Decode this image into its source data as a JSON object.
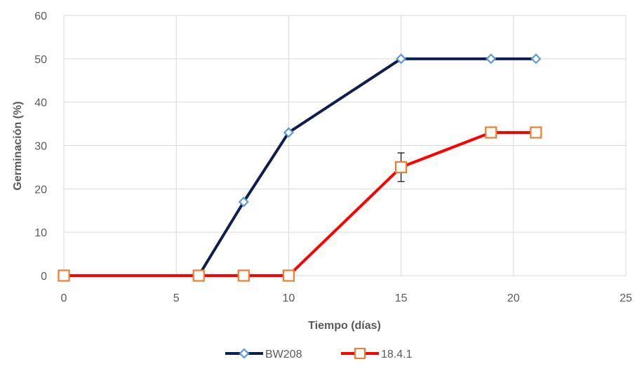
{
  "chart_data": {
    "type": "line",
    "title": "",
    "xlabel": "Tiempo (días)",
    "ylabel": "Germinación (%)",
    "xlim": [
      0,
      25
    ],
    "ylim": [
      0,
      60
    ],
    "x_ticks": [
      "0",
      "5",
      "10",
      "15",
      "20",
      "25"
    ],
    "y_ticks": [
      "0",
      "10",
      "20",
      "30",
      "40",
      "50",
      "60"
    ],
    "grid": true,
    "legend_position": "bottom",
    "series": [
      {
        "name": "BW208",
        "color": "#0d1f4f",
        "marker_color": "#5b9bd5",
        "marker": "diamond",
        "x": [
          0,
          6,
          8,
          10,
          15,
          19,
          21
        ],
        "y": [
          0,
          0,
          17,
          33,
          50,
          50,
          50
        ]
      },
      {
        "name": "18.4.1",
        "color": "#ff0000",
        "marker_color": "#ed7d31",
        "marker": "square",
        "x": [
          0,
          6,
          8,
          10,
          15,
          19,
          21
        ],
        "y": [
          0,
          0,
          0,
          0,
          25,
          33,
          33
        ],
        "error_bars": [
          {
            "x": 15,
            "y": 25,
            "plus": 3.3,
            "minus": 3.3
          }
        ]
      }
    ]
  }
}
